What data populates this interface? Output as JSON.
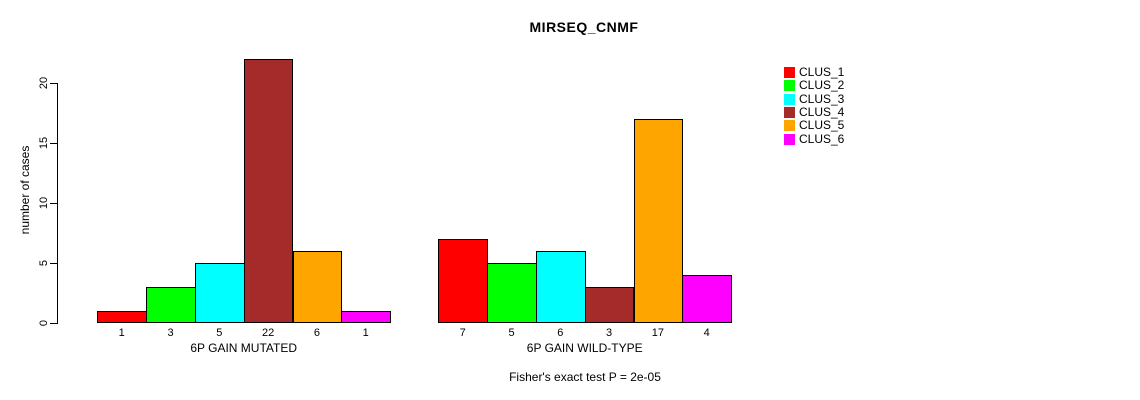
{
  "chart_data": {
    "type": "bar",
    "title": "MIRSEQ_CNMF",
    "ylabel": "number of cases",
    "caption": "Fisher's exact test P = 2e-05",
    "ylim": [
      0,
      22
    ],
    "yticks": [
      0,
      5,
      10,
      15,
      20
    ],
    "grid": false,
    "series": [
      "CLUS_1",
      "CLUS_2",
      "CLUS_3",
      "CLUS_4",
      "CLUS_5",
      "CLUS_6"
    ],
    "colors": [
      "#FF0000",
      "#00FF00",
      "#00FFFF",
      "#A52A2A",
      "#FFA500",
      "#FF00FF"
    ],
    "groups": [
      {
        "label": "6P GAIN MUTATED",
        "values": [
          1,
          3,
          5,
          22,
          6,
          1
        ]
      },
      {
        "label": "6P GAIN WILD-TYPE",
        "values": [
          7,
          5,
          6,
          3,
          17,
          4
        ]
      }
    ],
    "legend": {
      "position": "right",
      "entries": [
        {
          "label": "CLUS_1",
          "color": "#FF0000"
        },
        {
          "label": "CLUS_2",
          "color": "#00FF00"
        },
        {
          "label": "CLUS_3",
          "color": "#00FFFF"
        },
        {
          "label": "CLUS_4",
          "color": "#A52A2A"
        },
        {
          "label": "CLUS_5",
          "color": "#FFA500"
        },
        {
          "label": "CLUS_6",
          "color": "#FF00FF"
        }
      ]
    }
  }
}
